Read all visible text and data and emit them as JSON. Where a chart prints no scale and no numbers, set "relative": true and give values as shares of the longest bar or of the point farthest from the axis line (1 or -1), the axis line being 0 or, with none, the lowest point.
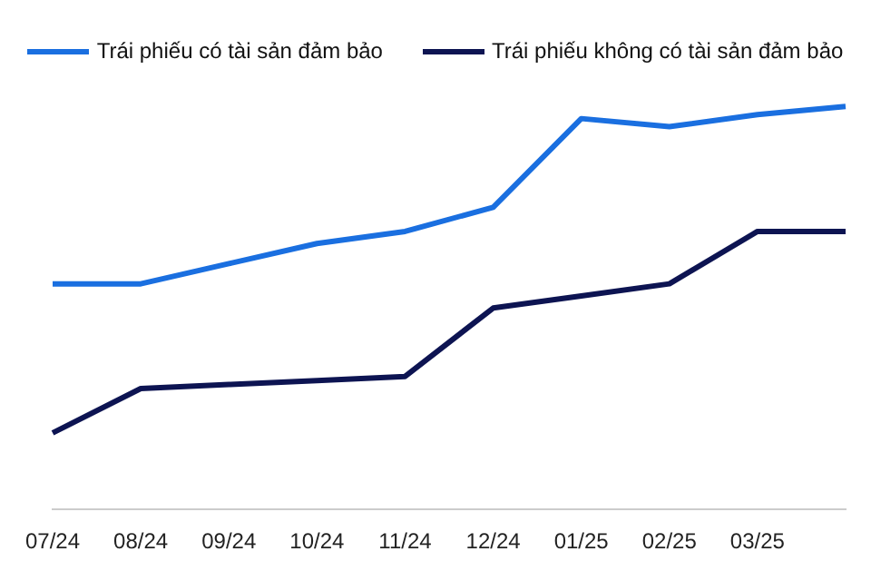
{
  "chart_data": {
    "type": "line",
    "relative": true,
    "categories": [
      "07/24",
      "08/24",
      "09/24",
      "10/24",
      "11/24",
      "12/24",
      "01/25",
      "02/25",
      "03/25",
      null
    ],
    "series": [
      {
        "name": "Trái phiếu có tài sản đảm bảo",
        "color": "#1a6fe0",
        "values": [
          0.56,
          0.56,
          0.61,
          0.66,
          0.69,
          0.75,
          0.97,
          0.95,
          0.98,
          1.0
        ]
      },
      {
        "name": "Trái phiếu không có tài sản đảm bảo",
        "color": "#0d1452",
        "values": [
          0.19,
          0.3,
          0.31,
          0.32,
          0.33,
          0.5,
          0.53,
          0.56,
          0.69,
          0.69
        ]
      }
    ],
    "legend": "top",
    "grid": false,
    "marker": "none",
    "line_style": "solid"
  }
}
